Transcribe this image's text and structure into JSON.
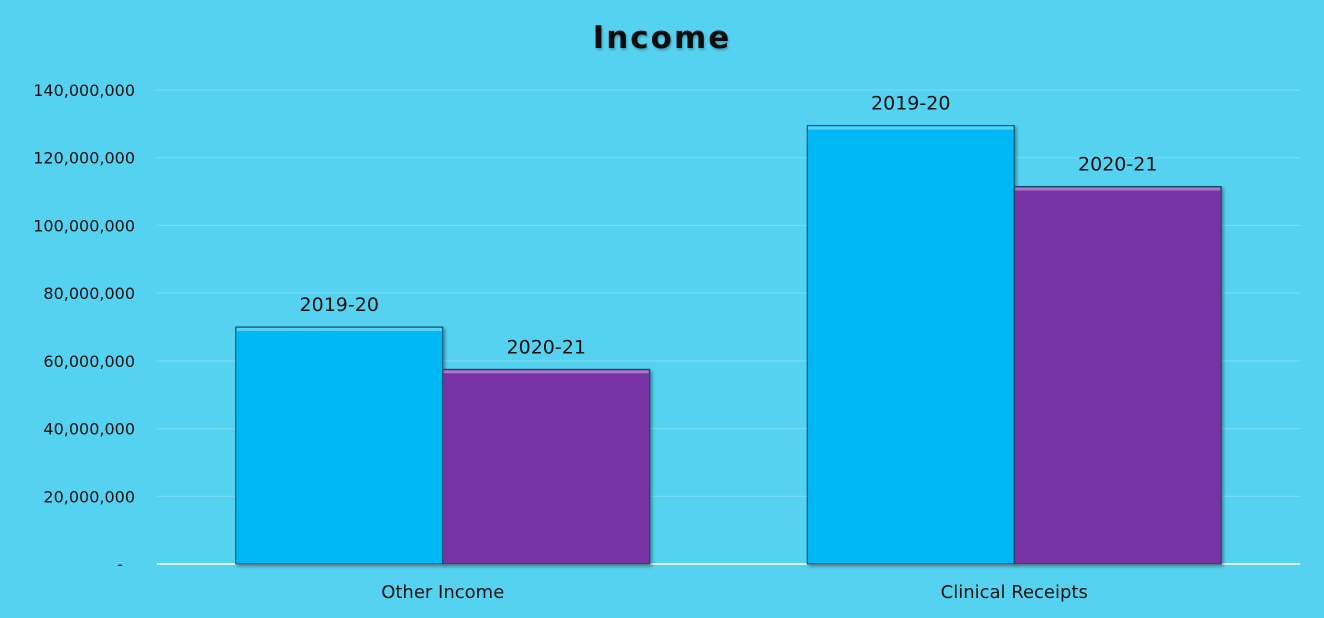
{
  "chart_data": {
    "type": "bar",
    "title": "Income",
    "categories": [
      "Other Income",
      "Clinical Receipts"
    ],
    "series": [
      {
        "name": "2019-20",
        "values": [
          70000000,
          129500000
        ],
        "color": "#00b8f4"
      },
      {
        "name": "2020-21",
        "values": [
          57500000,
          111500000
        ],
        "color": "#7733a3"
      }
    ],
    "data_labels": [
      [
        "2019-20",
        "2020-21"
      ],
      [
        "2019-20",
        "2020-21"
      ]
    ],
    "ylim": [
      0,
      140000000
    ],
    "yticks": [
      0,
      20000000,
      40000000,
      60000000,
      80000000,
      100000000,
      120000000,
      140000000
    ],
    "ytick_labels": [
      "-",
      "20,000,000",
      "40,000,000",
      "60,000,000",
      "80,000,000",
      "100,000,000",
      "120,000,000",
      "140,000,000"
    ],
    "xlabel": "",
    "ylabel": "",
    "grid": true,
    "legend": "none",
    "background": "#55d2f0"
  }
}
